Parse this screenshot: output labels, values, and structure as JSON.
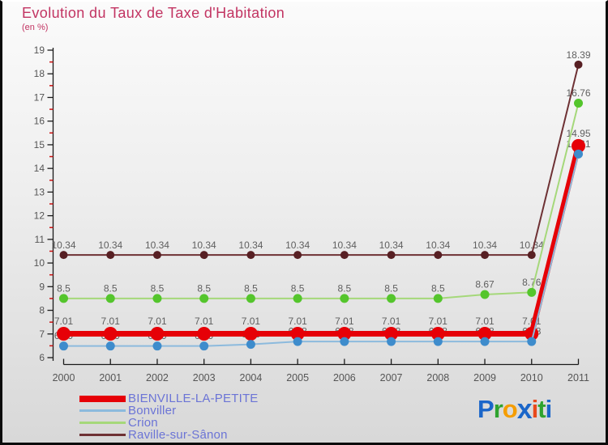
{
  "title": "Evolution du Taux de Taxe d'Habitation",
  "subtitle": "(en %)",
  "colors": {
    "title": "#c23462",
    "axis_line": "#1a1a1a",
    "tick_label": "#555555",
    "minor_tick": "#cc1111",
    "value_label": "#5f5f5f",
    "legend_text": "#6b74d6",
    "background_top": "#fbfbfb",
    "background_bottom": "#d8d8d8",
    "frame_border": "#0b0b0b"
  },
  "chart_data": {
    "type": "line",
    "title": "Evolution du Taux de Taxe d'Habitation",
    "subtitle": "(en %)",
    "xlabel": "",
    "ylabel": "",
    "x": [
      2000,
      2001,
      2002,
      2003,
      2004,
      2005,
      2006,
      2007,
      2008,
      2009,
      2010,
      2011
    ],
    "ylim": [
      6,
      19
    ],
    "y_tick_step": 1,
    "y_minor_tick_step": 0.5,
    "grid": false,
    "legend_position": "bottom-left",
    "series": [
      {
        "name": "BIENVILLE-LA-PETITE",
        "line_color": "#e60007",
        "marker_color": "#e60007",
        "line_width": 7,
        "marker_radius": 8.5,
        "values": [
          7.01,
          7.01,
          7.01,
          7.01,
          7.01,
          7.01,
          7.01,
          7.01,
          7.01,
          7.01,
          7.01,
          14.95
        ]
      },
      {
        "name": "Bonviller",
        "line_color": "#8cbadd",
        "marker_color": "#3e8ccc",
        "line_width": 2,
        "marker_radius": 5.5,
        "values": [
          6.49,
          6.49,
          6.49,
          6.49,
          6.56,
          6.68,
          6.68,
          6.68,
          6.68,
          6.68,
          6.68,
          14.61
        ]
      },
      {
        "name": "Crion",
        "line_color": "#a5d87a",
        "marker_color": "#54c52c",
        "line_width": 2,
        "marker_radius": 5.5,
        "values": [
          8.5,
          8.5,
          8.5,
          8.5,
          8.5,
          8.5,
          8.5,
          8.5,
          8.5,
          8.67,
          8.76,
          16.76
        ]
      },
      {
        "name": "Raville-sur-Sânon",
        "line_color": "#6e3134",
        "marker_color": "#571f23",
        "line_width": 2,
        "marker_radius": 5,
        "values": [
          10.34,
          10.34,
          10.34,
          10.34,
          10.34,
          10.34,
          10.34,
          10.34,
          10.34,
          10.34,
          10.34,
          18.39
        ]
      }
    ]
  },
  "logo": {
    "text": "Proxiti",
    "letters": [
      {
        "char": "P",
        "color": "#1b66c9"
      },
      {
        "char": "r",
        "color": "#2fa32f"
      },
      {
        "char": "o",
        "color": "#f59d00"
      },
      {
        "char": "x",
        "color": "#1b66c9"
      },
      {
        "char": "i",
        "color": "#e8491c"
      },
      {
        "char": "t",
        "color": "#2fa32f"
      },
      {
        "char": "i",
        "color": "#1b66c9"
      }
    ]
  }
}
